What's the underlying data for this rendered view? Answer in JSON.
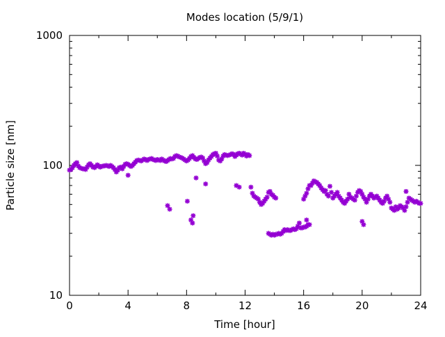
{
  "chart_data": {
    "type": "scatter",
    "title": "Modes location (5/9/1)",
    "xlabel": "Time [hour]",
    "ylabel": "Particle size [nm]",
    "xlim": [
      0,
      24
    ],
    "ylim": [
      10,
      1000
    ],
    "y_scale": "log",
    "grid": false,
    "legend": "none",
    "x_ticks": [
      {
        "value": 0,
        "label": "0"
      },
      {
        "value": 4,
        "label": "4"
      },
      {
        "value": 8,
        "label": "8"
      },
      {
        "value": 12,
        "label": "12"
      },
      {
        "value": 16,
        "label": "16"
      },
      {
        "value": 20,
        "label": "20"
      },
      {
        "value": 24,
        "label": "24"
      }
    ],
    "y_ticks": [
      {
        "value": 10,
        "label": "10"
      },
      {
        "value": 100,
        "label": "100"
      },
      {
        "value": 1000,
        "label": "1000"
      }
    ],
    "marker_color": "#9400d3",
    "series": [
      {
        "points": [
          [
            0.0,
            92
          ],
          [
            0.1,
            93
          ],
          [
            0.2,
            96
          ],
          [
            0.3,
            100
          ],
          [
            0.4,
            103
          ],
          [
            0.5,
            105
          ],
          [
            0.6,
            99
          ],
          [
            0.7,
            96
          ],
          [
            0.8,
            95
          ],
          [
            0.9,
            94
          ],
          [
            1.0,
            94
          ],
          [
            1.1,
            93
          ],
          [
            1.2,
            97
          ],
          [
            1.3,
            101
          ],
          [
            1.4,
            103
          ],
          [
            1.5,
            100
          ],
          [
            1.6,
            97
          ],
          [
            1.7,
            96
          ],
          [
            1.8,
            98
          ],
          [
            1.9,
            101
          ],
          [
            2.0,
            99
          ],
          [
            2.1,
            97
          ],
          [
            2.2,
            98
          ],
          [
            2.3,
            99
          ],
          [
            2.4,
            99
          ],
          [
            2.5,
            100
          ],
          [
            2.6,
            99
          ],
          [
            2.7,
            98
          ],
          [
            2.8,
            100
          ],
          [
            2.9,
            98
          ],
          [
            3.0,
            96
          ],
          [
            3.1,
            93
          ],
          [
            3.2,
            89
          ],
          [
            3.3,
            92
          ],
          [
            3.4,
            96
          ],
          [
            3.5,
            97
          ],
          [
            3.6,
            94
          ],
          [
            3.7,
            98
          ],
          [
            3.8,
            102
          ],
          [
            3.9,
            103
          ],
          [
            4.0,
            102
          ],
          [
            4.1,
            100
          ],
          [
            4.2,
            98
          ],
          [
            4.3,
            100
          ],
          [
            4.4,
            103
          ],
          [
            4.5,
            106
          ],
          [
            4.6,
            109
          ],
          [
            4.7,
            110
          ],
          [
            4.8,
            109
          ],
          [
            4.9,
            108
          ],
          [
            5.0,
            110
          ],
          [
            5.1,
            112
          ],
          [
            5.2,
            111
          ],
          [
            5.3,
            109
          ],
          [
            5.4,
            111
          ],
          [
            5.5,
            112
          ],
          [
            5.6,
            113
          ],
          [
            5.7,
            111
          ],
          [
            5.8,
            110
          ],
          [
            5.9,
            109
          ],
          [
            6.0,
            111
          ],
          [
            6.1,
            110
          ],
          [
            6.2,
            109
          ],
          [
            6.3,
            112
          ],
          [
            6.4,
            110
          ],
          [
            6.5,
            108
          ],
          [
            6.6,
            107
          ],
          [
            6.7,
            109
          ],
          [
            6.8,
            111
          ],
          [
            6.9,
            113
          ],
          [
            7.0,
            112
          ],
          [
            7.1,
            113
          ],
          [
            7.2,
            117
          ],
          [
            7.3,
            119
          ],
          [
            7.4,
            118
          ],
          [
            7.5,
            116
          ],
          [
            7.6,
            115
          ],
          [
            7.7,
            114
          ],
          [
            7.8,
            112
          ],
          [
            7.9,
            110
          ],
          [
            8.0,
            108
          ],
          [
            8.1,
            110
          ],
          [
            8.2,
            113
          ],
          [
            8.3,
            117
          ],
          [
            8.4,
            119
          ],
          [
            8.5,
            115
          ],
          [
            8.6,
            112
          ],
          [
            8.7,
            111
          ],
          [
            8.8,
            113
          ],
          [
            8.9,
            115
          ],
          [
            9.0,
            116
          ],
          [
            9.1,
            114
          ],
          [
            9.2,
            108
          ],
          [
            9.3,
            103
          ],
          [
            9.4,
            105
          ],
          [
            9.5,
            110
          ],
          [
            9.6,
            114
          ],
          [
            9.7,
            117
          ],
          [
            9.8,
            121
          ],
          [
            9.9,
            123
          ],
          [
            10.0,
            124
          ],
          [
            10.1,
            118
          ],
          [
            10.2,
            110
          ],
          [
            10.3,
            108
          ],
          [
            10.4,
            112
          ],
          [
            10.5,
            118
          ],
          [
            10.6,
            121
          ],
          [
            10.7,
            120
          ],
          [
            10.8,
            119
          ],
          [
            10.9,
            120
          ],
          [
            11.0,
            121
          ],
          [
            11.1,
            123
          ],
          [
            11.2,
            122
          ],
          [
            11.3,
            117
          ],
          [
            11.4,
            120
          ],
          [
            11.5,
            123
          ],
          [
            11.6,
            124
          ],
          [
            11.7,
            122
          ],
          [
            11.8,
            120
          ],
          [
            11.9,
            124
          ],
          [
            12.0,
            122
          ],
          [
            12.1,
            118
          ],
          [
            12.2,
            121
          ],
          [
            12.3,
            119
          ],
          [
            4.0,
            84
          ],
          [
            6.7,
            49
          ],
          [
            6.85,
            46
          ],
          [
            8.05,
            53
          ],
          [
            8.3,
            38
          ],
          [
            8.4,
            36
          ],
          [
            8.45,
            41
          ],
          [
            8.65,
            80
          ],
          [
            9.3,
            72
          ],
          [
            11.4,
            70
          ],
          [
            11.6,
            68
          ],
          [
            12.4,
            68
          ],
          [
            12.5,
            61
          ],
          [
            12.6,
            58
          ],
          [
            12.7,
            57
          ],
          [
            12.8,
            56
          ],
          [
            12.9,
            55
          ],
          [
            13.0,
            52
          ],
          [
            13.1,
            50
          ],
          [
            13.2,
            51
          ],
          [
            13.3,
            53
          ],
          [
            13.4,
            55
          ],
          [
            13.5,
            57
          ],
          [
            13.6,
            62
          ],
          [
            13.7,
            63
          ],
          [
            13.8,
            60
          ],
          [
            13.9,
            59
          ],
          [
            14.0,
            57
          ],
          [
            14.1,
            56
          ],
          [
            13.6,
            30
          ],
          [
            13.7,
            29.5
          ],
          [
            13.8,
            29
          ],
          [
            13.9,
            29.5
          ],
          [
            14.0,
            29
          ],
          [
            14.1,
            29.5
          ],
          [
            14.2,
            29.5
          ],
          [
            14.3,
            30
          ],
          [
            14.4,
            29.5
          ],
          [
            14.5,
            30
          ],
          [
            14.6,
            31
          ],
          [
            14.7,
            32
          ],
          [
            14.8,
            31.5
          ],
          [
            14.9,
            32
          ],
          [
            15.0,
            31.5
          ],
          [
            15.1,
            31.5
          ],
          [
            15.2,
            32
          ],
          [
            15.3,
            32.5
          ],
          [
            15.4,
            32
          ],
          [
            15.5,
            32.5
          ],
          [
            15.6,
            34
          ],
          [
            15.7,
            36
          ],
          [
            15.8,
            33
          ],
          [
            15.9,
            33
          ],
          [
            16.0,
            33.5
          ],
          [
            16.1,
            33.5
          ],
          [
            16.2,
            34
          ],
          [
            16.3,
            35
          ],
          [
            16.4,
            35
          ],
          [
            16.2,
            38
          ],
          [
            16.0,
            55
          ],
          [
            16.1,
            58
          ],
          [
            16.2,
            61
          ],
          [
            16.3,
            66
          ],
          [
            16.4,
            70
          ],
          [
            16.5,
            70
          ],
          [
            16.6,
            73
          ],
          [
            16.7,
            76
          ],
          [
            16.8,
            75
          ],
          [
            16.9,
            74
          ],
          [
            17.0,
            72
          ],
          [
            17.1,
            70
          ],
          [
            17.2,
            67
          ],
          [
            17.3,
            65
          ],
          [
            17.4,
            63
          ],
          [
            17.5,
            64
          ],
          [
            17.6,
            60
          ],
          [
            17.7,
            58
          ],
          [
            17.8,
            69
          ],
          [
            17.9,
            62
          ],
          [
            18.0,
            56
          ],
          [
            18.1,
            58
          ],
          [
            18.2,
            60
          ],
          [
            18.3,
            62
          ],
          [
            18.4,
            58
          ],
          [
            18.5,
            56
          ],
          [
            18.6,
            54
          ],
          [
            18.7,
            52
          ],
          [
            18.8,
            51
          ],
          [
            18.9,
            53
          ],
          [
            19.0,
            55
          ],
          [
            19.1,
            60
          ],
          [
            19.2,
            57
          ],
          [
            19.3,
            56
          ],
          [
            19.4,
            55
          ],
          [
            19.5,
            54
          ],
          [
            19.6,
            58
          ],
          [
            19.7,
            62
          ],
          [
            19.8,
            64
          ],
          [
            19.9,
            63
          ],
          [
            20.0,
            60
          ],
          [
            20.1,
            57
          ],
          [
            20.2,
            55
          ],
          [
            20.3,
            52
          ],
          [
            20.4,
            55
          ],
          [
            20.5,
            58
          ],
          [
            20.6,
            60
          ],
          [
            20.7,
            58
          ],
          [
            20.8,
            56
          ],
          [
            20.9,
            57
          ],
          [
            21.0,
            58
          ],
          [
            21.1,
            56
          ],
          [
            21.2,
            54
          ],
          [
            21.3,
            52
          ],
          [
            21.4,
            51
          ],
          [
            21.5,
            53
          ],
          [
            21.6,
            56
          ],
          [
            21.7,
            58
          ],
          [
            21.8,
            55
          ],
          [
            21.9,
            52
          ],
          [
            22.0,
            47
          ],
          [
            22.1,
            46
          ],
          [
            22.2,
            45
          ],
          [
            22.3,
            48
          ],
          [
            22.4,
            46
          ],
          [
            22.5,
            47
          ],
          [
            22.6,
            49
          ],
          [
            22.7,
            48
          ],
          [
            22.8,
            47
          ],
          [
            22.9,
            45
          ],
          [
            23.0,
            48
          ],
          [
            23.1,
            52
          ],
          [
            23.2,
            56
          ],
          [
            23.3,
            55
          ],
          [
            23.4,
            54
          ],
          [
            23.5,
            53
          ],
          [
            23.6,
            52
          ],
          [
            23.7,
            53
          ],
          [
            23.8,
            52
          ],
          [
            23.9,
            51
          ],
          [
            24.0,
            51
          ],
          [
            23.0,
            63
          ],
          [
            20.0,
            37
          ],
          [
            20.1,
            35
          ]
        ]
      }
    ]
  }
}
